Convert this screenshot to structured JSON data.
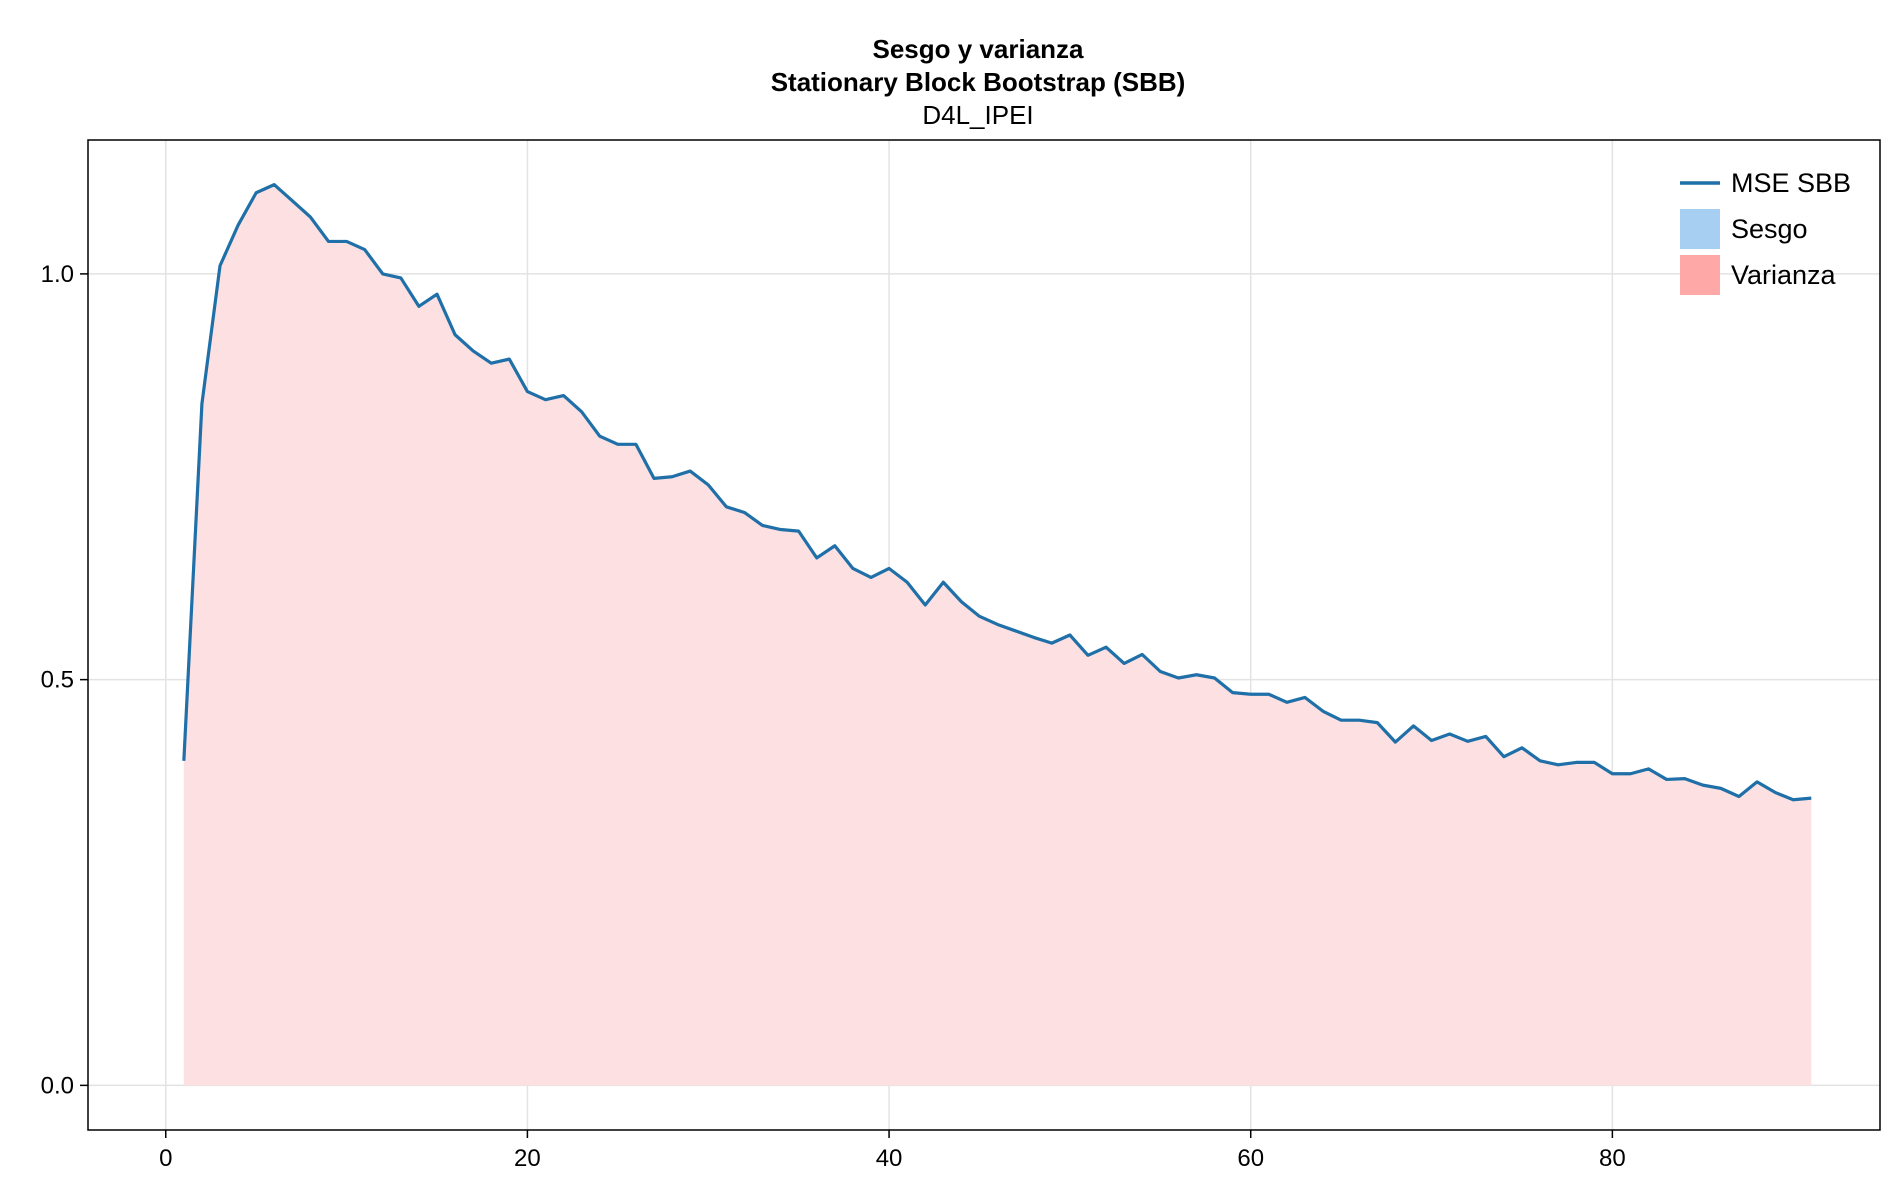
{
  "chart_data": {
    "type": "area",
    "title": "Sesgo y varianza",
    "subtitle": "Stationary Block Bootstrap (SBB)",
    "subtitle2": "D4L_IPEI",
    "xlabel": "",
    "ylabel": "",
    "xlim": [
      -4.3,
      94.8
    ],
    "ylim": [
      -0.055,
      1.165
    ],
    "xticks": [
      0,
      20,
      40,
      60,
      80
    ],
    "xtick_labels": [
      "0",
      "20",
      "40",
      "60",
      "80"
    ],
    "yticks": [
      0.0,
      0.5,
      1.0
    ],
    "ytick_labels": [
      "0.0",
      "0.5",
      "1.0"
    ],
    "grid": true,
    "legend_position": "top-right",
    "colors": {
      "mse": "#1f6fa8",
      "sesgo": "#a6cff2",
      "varianza_legend": "#ffa8a8",
      "varianza_fill": "#fde0e2",
      "grid": "#e3e3e3",
      "frame": "#000000"
    },
    "x": [
      1,
      2,
      3,
      4,
      5,
      6,
      7,
      8,
      9,
      10,
      11,
      12,
      13,
      14,
      15,
      16,
      17,
      18,
      19,
      20,
      21,
      22,
      23,
      24,
      25,
      26,
      27,
      28,
      29,
      30,
      31,
      32,
      33,
      34,
      35,
      36,
      37,
      38,
      39,
      40,
      41,
      42,
      43,
      44,
      45,
      46,
      47,
      48,
      49,
      50,
      51,
      52,
      53,
      54,
      55,
      56,
      57,
      58,
      59,
      60,
      61,
      62,
      63,
      64,
      65,
      66,
      67,
      68,
      69,
      70,
      71,
      72,
      73,
      74,
      75,
      76,
      77,
      78,
      79,
      80,
      81,
      82,
      83,
      84,
      85,
      86,
      87,
      88,
      89,
      90,
      91
    ],
    "series": [
      {
        "name": "MSE SBB",
        "kind": "line",
        "values": [
          0.4,
          0.84,
          1.01,
          1.06,
          1.1,
          1.11,
          1.09,
          1.07,
          1.04,
          1.04,
          1.03,
          1.0,
          0.995,
          0.96,
          0.975,
          0.925,
          0.905,
          0.89,
          0.895,
          0.855,
          0.845,
          0.85,
          0.83,
          0.8,
          0.79,
          0.79,
          0.748,
          0.75,
          0.757,
          0.74,
          0.713,
          0.706,
          0.69,
          0.685,
          0.683,
          0.65,
          0.665,
          0.637,
          0.626,
          0.637,
          0.62,
          0.592,
          0.62,
          0.596,
          0.578,
          0.568,
          0.56,
          0.552,
          0.545,
          0.555,
          0.53,
          0.54,
          0.52,
          0.531,
          0.51,
          0.502,
          0.506,
          0.502,
          0.484,
          0.482,
          0.482,
          0.472,
          0.478,
          0.461,
          0.45,
          0.45,
          0.447,
          0.423,
          0.443,
          0.425,
          0.433,
          0.424,
          0.43,
          0.405,
          0.416,
          0.4,
          0.395,
          0.398,
          0.398,
          0.384,
          0.384,
          0.39,
          0.377,
          0.378,
          0.37,
          0.366,
          0.356,
          0.374,
          0.361,
          0.352,
          0.354
        ]
      },
      {
        "name": "Sesgo",
        "kind": "area",
        "values": [
          0,
          0,
          0,
          0,
          0,
          0,
          0,
          0,
          0,
          0,
          0,
          0,
          0,
          0,
          0,
          0,
          0,
          0,
          0,
          0,
          0,
          0,
          0,
          0,
          0,
          0,
          0,
          0,
          0,
          0,
          0,
          0,
          0,
          0,
          0,
          0,
          0,
          0,
          0,
          0,
          0,
          0,
          0,
          0,
          0,
          0,
          0,
          0,
          0,
          0,
          0,
          0,
          0,
          0,
          0,
          0,
          0,
          0,
          0,
          0,
          0,
          0,
          0,
          0,
          0,
          0,
          0,
          0,
          0,
          0,
          0,
          0,
          0,
          0,
          0,
          0,
          0,
          0,
          0,
          0,
          0,
          0,
          0,
          0,
          0,
          0,
          0,
          0,
          0,
          0,
          0
        ]
      },
      {
        "name": "Varianza",
        "kind": "area",
        "stacked_on": "Sesgo",
        "values": [
          0.4,
          0.84,
          1.01,
          1.06,
          1.1,
          1.11,
          1.09,
          1.07,
          1.04,
          1.04,
          1.03,
          1.0,
          0.995,
          0.96,
          0.975,
          0.925,
          0.905,
          0.89,
          0.895,
          0.855,
          0.845,
          0.85,
          0.83,
          0.8,
          0.79,
          0.79,
          0.748,
          0.75,
          0.757,
          0.74,
          0.713,
          0.706,
          0.69,
          0.685,
          0.683,
          0.65,
          0.665,
          0.637,
          0.626,
          0.637,
          0.62,
          0.592,
          0.62,
          0.596,
          0.578,
          0.568,
          0.56,
          0.552,
          0.545,
          0.555,
          0.53,
          0.54,
          0.52,
          0.531,
          0.51,
          0.502,
          0.506,
          0.502,
          0.484,
          0.482,
          0.482,
          0.472,
          0.478,
          0.461,
          0.45,
          0.45,
          0.447,
          0.423,
          0.443,
          0.425,
          0.433,
          0.424,
          0.43,
          0.405,
          0.416,
          0.4,
          0.395,
          0.398,
          0.398,
          0.384,
          0.384,
          0.39,
          0.377,
          0.378,
          0.37,
          0.366,
          0.356,
          0.374,
          0.361,
          0.352,
          0.354
        ]
      }
    ],
    "legend": [
      {
        "label": "MSE SBB",
        "swatch": "line"
      },
      {
        "label": "Sesgo",
        "swatch": "box"
      },
      {
        "label": "Varianza",
        "swatch": "box"
      }
    ]
  }
}
